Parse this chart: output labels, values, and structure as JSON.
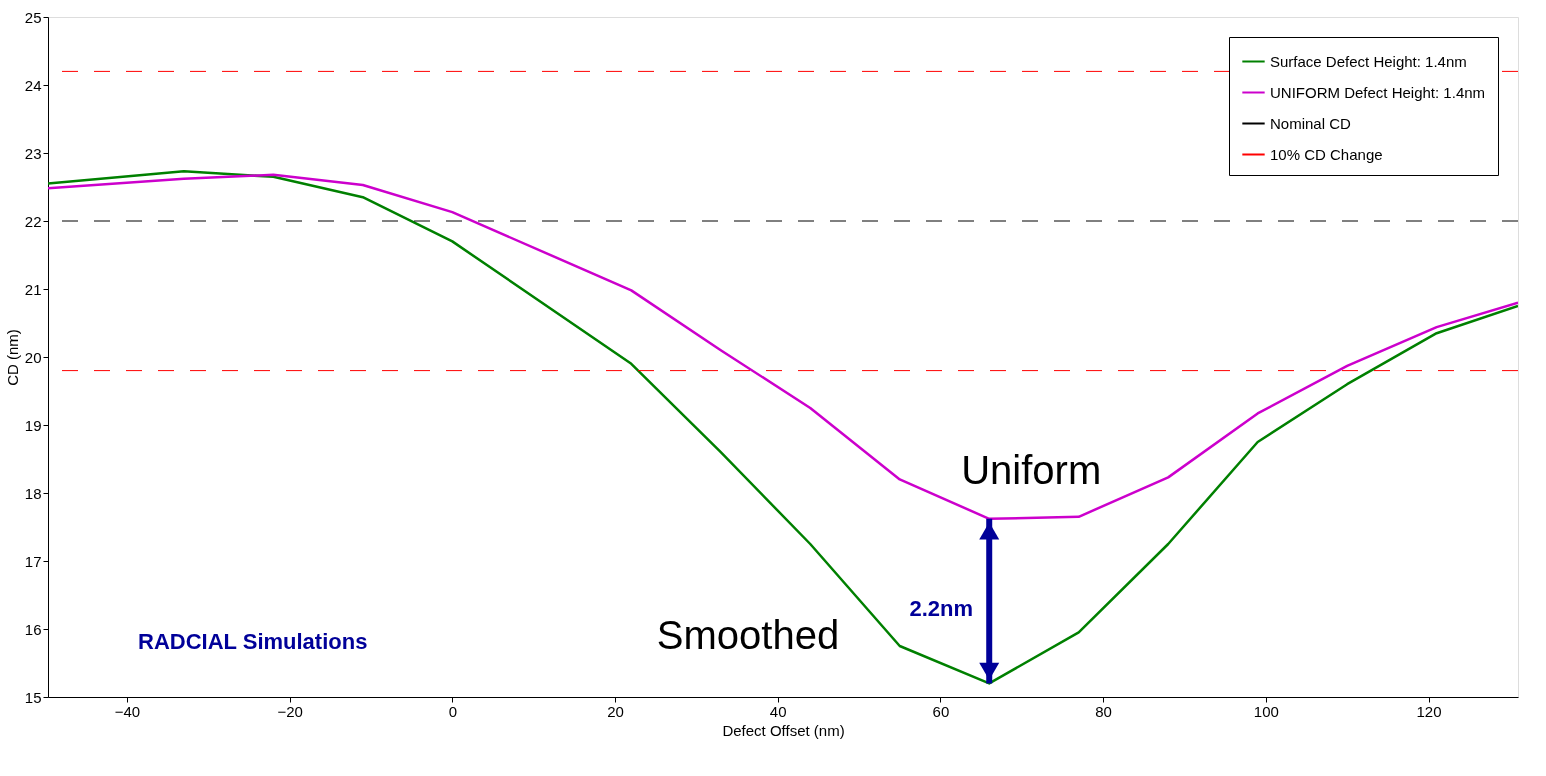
{
  "chart_data": {
    "type": "line",
    "xlabel": "Defect Offset (nm)",
    "ylabel": "CD (nm)",
    "x": [
      -49.7,
      -33,
      -22,
      -11,
      0,
      22,
      33,
      44,
      55,
      66,
      77,
      88,
      99,
      110,
      121,
      131
    ],
    "series": [
      {
        "name": "Surface Defect Height: 1.4nm",
        "color": "#008000",
        "values": [
          22.55,
          22.73,
          22.65,
          22.35,
          21.7,
          19.9,
          18.6,
          17.25,
          15.75,
          15.2,
          15.95,
          17.25,
          18.75,
          19.6,
          20.35,
          20.75
        ]
      },
      {
        "name": "UNIFORM Defect Height: 1.4nm",
        "color": "#cc00cc",
        "values": [
          22.48,
          22.62,
          22.68,
          22.53,
          22.13,
          20.98,
          20.1,
          19.25,
          18.2,
          17.62,
          17.65,
          18.23,
          19.17,
          19.87,
          20.44,
          20.8
        ]
      }
    ],
    "xlim": [
      -49.7,
      131
    ],
    "xticks": [
      -40,
      -20,
      0,
      20,
      40,
      60,
      80,
      100,
      120
    ],
    "ylim": [
      15,
      25
    ],
    "yticks": [
      15,
      16,
      17,
      18,
      19,
      20,
      21,
      22,
      23,
      24,
      25
    ],
    "ref_lines": [
      {
        "axis": "y",
        "value": 22,
        "label": "Nominal CD",
        "color": "#000000",
        "line_style": "dashed"
      },
      {
        "axis": "y",
        "value": 24.2,
        "label": "10% CD Change",
        "color": "#ff0000",
        "line_style": "dashed"
      },
      {
        "axis": "y",
        "value": 19.8,
        "label": null,
        "color": "#ff0000",
        "line_style": "dashed"
      }
    ],
    "annotations": [
      {
        "text": "Uniform",
        "x": 66,
        "y": 17.62
      },
      "Smoothed",
      "2.2nm",
      "RADCIAL Simulations"
    ],
    "legend": "top right",
    "grid": false,
    "line_style": "solid",
    "marker": "none"
  }
}
